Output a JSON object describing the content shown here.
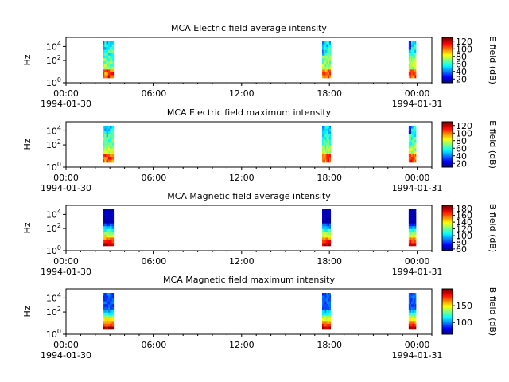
{
  "chart_data": [
    {
      "type": "heatmap",
      "title": "MCA  Electric field average intensity",
      "ylabel": "Hz",
      "yscale": "log",
      "yticks": [
        "10^0",
        "10^2",
        "10^4"
      ],
      "xticks": [
        "00:00",
        "06:00",
        "12:00",
        "18:00",
        "00:00"
      ],
      "xdates": [
        "1994-01-30",
        "1994-01-31"
      ],
      "xlim": [
        "1994-01-30T00:00",
        "1994-01-31T01:00"
      ],
      "colorbar": {
        "label": "E field (dB)",
        "ticks": [
          20,
          40,
          60,
          80,
          100,
          120
        ],
        "range": [
          10,
          130
        ],
        "colormap": "jet"
      },
      "passes": [
        {
          "start": "1994-01-30T02:30",
          "end": "1994-01-30T03:15",
          "profile": "E"
        },
        {
          "start": "1994-01-30T17:30",
          "end": "1994-01-30T18:05",
          "profile": "E"
        },
        {
          "start": "1994-01-30T23:25",
          "end": "1994-01-30T23:55",
          "profile": "E"
        }
      ]
    },
    {
      "type": "heatmap",
      "title": "MCA  Electric field maximum intensity",
      "ylabel": "Hz",
      "yscale": "log",
      "yticks": [
        "10^0",
        "10^2",
        "10^4"
      ],
      "xticks": [
        "00:00",
        "06:00",
        "12:00",
        "18:00",
        "00:00"
      ],
      "xdates": [
        "1994-01-30",
        "1994-01-31"
      ],
      "xlim": [
        "1994-01-30T00:00",
        "1994-01-31T01:00"
      ],
      "colorbar": {
        "label": "E field (dB)",
        "ticks": [
          20,
          40,
          60,
          80,
          100,
          120
        ],
        "range": [
          10,
          130
        ],
        "colormap": "jet"
      },
      "passes": [
        {
          "start": "1994-01-30T02:30",
          "end": "1994-01-30T03:15",
          "profile": "E"
        },
        {
          "start": "1994-01-30T17:30",
          "end": "1994-01-30T18:05",
          "profile": "E"
        },
        {
          "start": "1994-01-30T23:25",
          "end": "1994-01-30T23:55",
          "profile": "E"
        }
      ]
    },
    {
      "type": "heatmap",
      "title": "MCA  Magnetic field average intensity",
      "ylabel": "Hz",
      "yscale": "log",
      "yticks": [
        "10^0",
        "10^2",
        "10^4"
      ],
      "xticks": [
        "00:00",
        "06:00",
        "12:00",
        "18:00",
        "00:00"
      ],
      "xdates": [
        "1994-01-30",
        "1994-01-31"
      ],
      "xlim": [
        "1994-01-30T00:00",
        "1994-01-31T01:00"
      ],
      "colorbar": {
        "label": "B field (dB)",
        "ticks": [
          60,
          80,
          100,
          120,
          140,
          160,
          180
        ],
        "range": [
          55,
          190
        ],
        "colormap": "jet"
      },
      "passes": [
        {
          "start": "1994-01-30T02:30",
          "end": "1994-01-30T03:15",
          "profile": "B"
        },
        {
          "start": "1994-01-30T17:30",
          "end": "1994-01-30T18:05",
          "profile": "B"
        },
        {
          "start": "1994-01-30T23:25",
          "end": "1994-01-30T23:55",
          "profile": "B"
        }
      ]
    },
    {
      "type": "heatmap",
      "title": "MCA  Magnetic field maximum intensity",
      "ylabel": "Hz",
      "yscale": "log",
      "yticks": [
        "10^0",
        "10^2",
        "10^4"
      ],
      "xticks": [
        "00:00",
        "06:00",
        "12:00",
        "18:00",
        "00:00"
      ],
      "xdates": [
        "1994-01-30",
        "1994-01-31"
      ],
      "xlim": [
        "1994-01-30T00:00",
        "1994-01-31T01:00"
      ],
      "colorbar": {
        "label": "B field (dB)",
        "ticks": [
          100,
          150
        ],
        "range": [
          65,
          200
        ],
        "colormap": "jet"
      },
      "passes": [
        {
          "start": "1994-01-30T02:30",
          "end": "1994-01-30T03:15",
          "profile": "B"
        },
        {
          "start": "1994-01-30T17:30",
          "end": "1994-01-30T18:05",
          "profile": "B"
        },
        {
          "start": "1994-01-30T23:25",
          "end": "1994-01-30T23:55",
          "profile": "B"
        }
      ]
    }
  ]
}
